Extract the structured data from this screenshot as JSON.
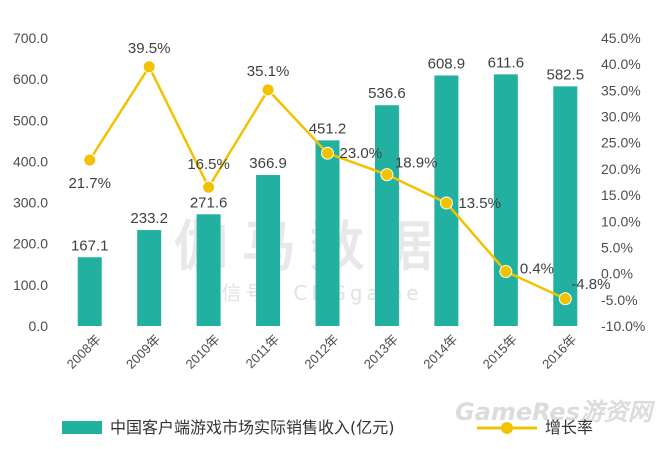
{
  "chart_data": {
    "type": "bar",
    "categories": [
      "2008年",
      "2009年",
      "2010年",
      "2011年",
      "2012年",
      "2013年",
      "2014年",
      "2015年",
      "2016年"
    ],
    "series": [
      {
        "name": "中国客户端游戏市场实际销售收入(亿元)",
        "type": "bar",
        "axis": "left",
        "values": [
          167.1,
          233.2,
          271.6,
          366.9,
          451.2,
          536.6,
          608.9,
          611.6,
          582.5
        ],
        "labels": [
          "167.1",
          "233.2",
          "271.6",
          "366.9",
          "451.2",
          "536.6",
          "608.9",
          "611.6",
          "582.5"
        ]
      },
      {
        "name": "增长率",
        "type": "line",
        "axis": "right",
        "values": [
          21.7,
          39.5,
          16.5,
          35.1,
          23.0,
          18.9,
          13.5,
          0.4,
          -4.8
        ],
        "labels": [
          "21.7%",
          "39.5%",
          "16.5%",
          "35.1%",
          "23.0%",
          "18.9%",
          "13.5%",
          "0.4%",
          "-4.8%"
        ]
      }
    ],
    "y_left": {
      "ylim": [
        0,
        700
      ],
      "ticks": [
        "0.0",
        "100.0",
        "200.0",
        "300.0",
        "400.0",
        "500.0",
        "600.0",
        "700.0"
      ]
    },
    "y_right": {
      "ylim": [
        -10,
        45
      ],
      "ticks": [
        "-10.0%",
        "-5.0%",
        "0.0%",
        "5.0%",
        "10.0%",
        "15.0%",
        "20.0%",
        "25.0%",
        "30.0%",
        "35.0%",
        "40.0%",
        "45.0%"
      ]
    },
    "legend_position": "bottom",
    "grid": false,
    "colors": {
      "bar": "#22b1a0",
      "line": "#f2c200",
      "marker": "#f2c200",
      "text": "#404040"
    }
  },
  "watermark": {
    "main": "伽马数据",
    "sub": "微信号：CNGgame",
    "corner": "GameRes游资网"
  }
}
